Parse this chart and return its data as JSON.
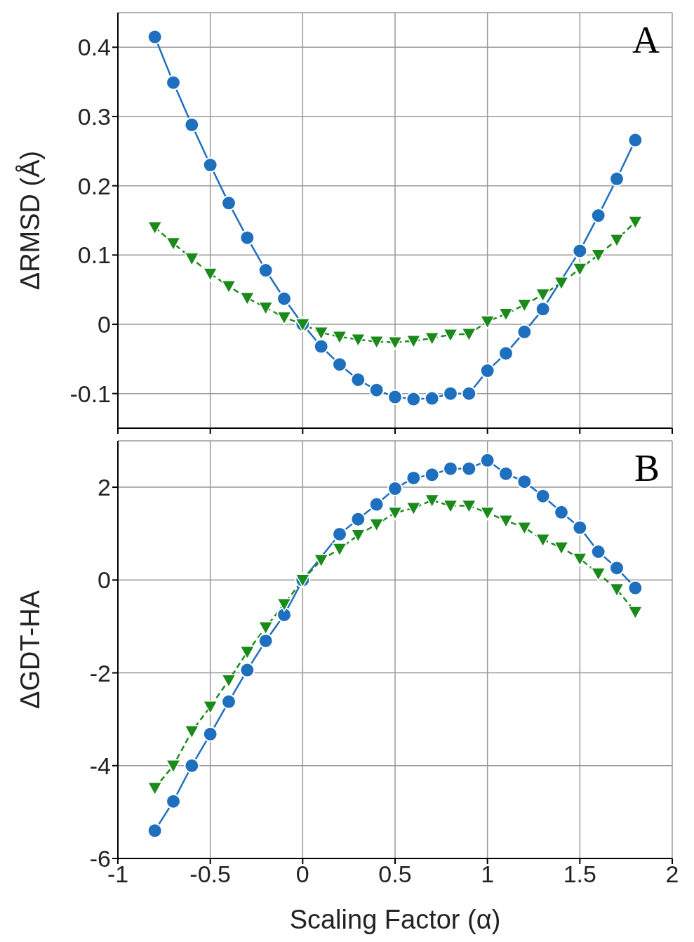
{
  "chart_data": [
    {
      "type": "line",
      "ylabel": "ΔRMSD (Å)",
      "annotations": [
        "A"
      ],
      "x": [
        -0.8,
        -0.7,
        -0.6,
        -0.5,
        -0.4,
        -0.3,
        -0.2,
        -0.1,
        0,
        0.1,
        0.2,
        0.3,
        0.4,
        0.5,
        0.6,
        0.7,
        0.8,
        0.9,
        1.0,
        1.1,
        1.2,
        1.3,
        1.4,
        1.5,
        1.6,
        1.7,
        1.8
      ],
      "series": [
        {
          "color": "#1f6fbf",
          "marker": "circle",
          "line_style": "solid",
          "values": [
            0.415,
            0.349,
            0.288,
            0.23,
            0.175,
            0.125,
            0.078,
            0.037,
            0,
            -0.032,
            -0.058,
            -0.08,
            -0.095,
            -0.105,
            -0.108,
            -0.107,
            -0.1,
            -0.1,
            -0.067,
            -0.042,
            -0.011,
            0.022,
            null,
            0.106,
            0.157,
            0.21,
            0.266
          ]
        },
        {
          "color": "#1a8a1a",
          "marker": "triangle",
          "line_style": "dashed",
          "values": [
            0.14,
            0.117,
            0.095,
            0.073,
            0.055,
            0.038,
            0.024,
            0.01,
            0,
            -0.012,
            -0.018,
            -0.022,
            -0.025,
            -0.026,
            -0.024,
            -0.02,
            -0.015,
            -0.014,
            0.004,
            0.015,
            0.028,
            0.043,
            0.06,
            0.08,
            0.1,
            0.122,
            0.148
          ]
        }
      ],
      "xlim": [
        -1,
        2
      ],
      "xticks": [
        -1,
        -0.5,
        0,
        0.5,
        1,
        1.5,
        2
      ],
      "ylim": [
        -0.15,
        0.45
      ],
      "yticks": [
        -0.1,
        0,
        0.1,
        0.2,
        0.3,
        0.4
      ],
      "grid": true,
      "tick_labels": "y"
    },
    {
      "type": "line",
      "ylabel": "ΔGDT-HA",
      "xlabel": "Scaling Factor (α)",
      "annotations": [
        "B"
      ],
      "x": [
        -0.8,
        -0.7,
        -0.6,
        -0.5,
        -0.4,
        -0.3,
        -0.2,
        -0.1,
        0,
        0.1,
        0.2,
        0.3,
        0.4,
        0.5,
        0.6,
        0.7,
        0.8,
        0.9,
        1.0,
        1.1,
        1.2,
        1.3,
        1.4,
        1.5,
        1.6,
        1.7,
        1.8
      ],
      "series": [
        {
          "color": "#1f6fbf",
          "marker": "circle",
          "line_style": "solid",
          "values": [
            -5.4,
            -4.77,
            -4.0,
            -3.32,
            -2.62,
            -1.94,
            -1.31,
            -0.75,
            0,
            null,
            0.99,
            1.31,
            1.63,
            1.97,
            2.2,
            2.27,
            2.4,
            2.4,
            2.58,
            2.29,
            2.12,
            1.81,
            1.46,
            1.13,
            0.61,
            0.26,
            -0.17
          ]
        },
        {
          "color": "#1a8a1a",
          "marker": "triangle",
          "line_style": "dashed",
          "values": [
            -4.48,
            -4.0,
            -3.26,
            -2.73,
            -2.16,
            -1.55,
            -1.02,
            -0.52,
            0,
            0.43,
            0.67,
            0.97,
            1.2,
            1.45,
            1.55,
            1.72,
            1.6,
            1.6,
            1.45,
            1.28,
            1.13,
            0.87,
            0.7,
            0.46,
            0.14,
            -0.2,
            -0.69
          ]
        }
      ],
      "xlim": [
        -1,
        2
      ],
      "xticks": [
        -1,
        -0.5,
        0,
        0.5,
        1,
        1.5,
        2
      ],
      "ylim": [
        -6,
        3
      ],
      "yticks": [
        -6,
        -4,
        -2,
        0,
        2
      ],
      "grid": true
    }
  ]
}
